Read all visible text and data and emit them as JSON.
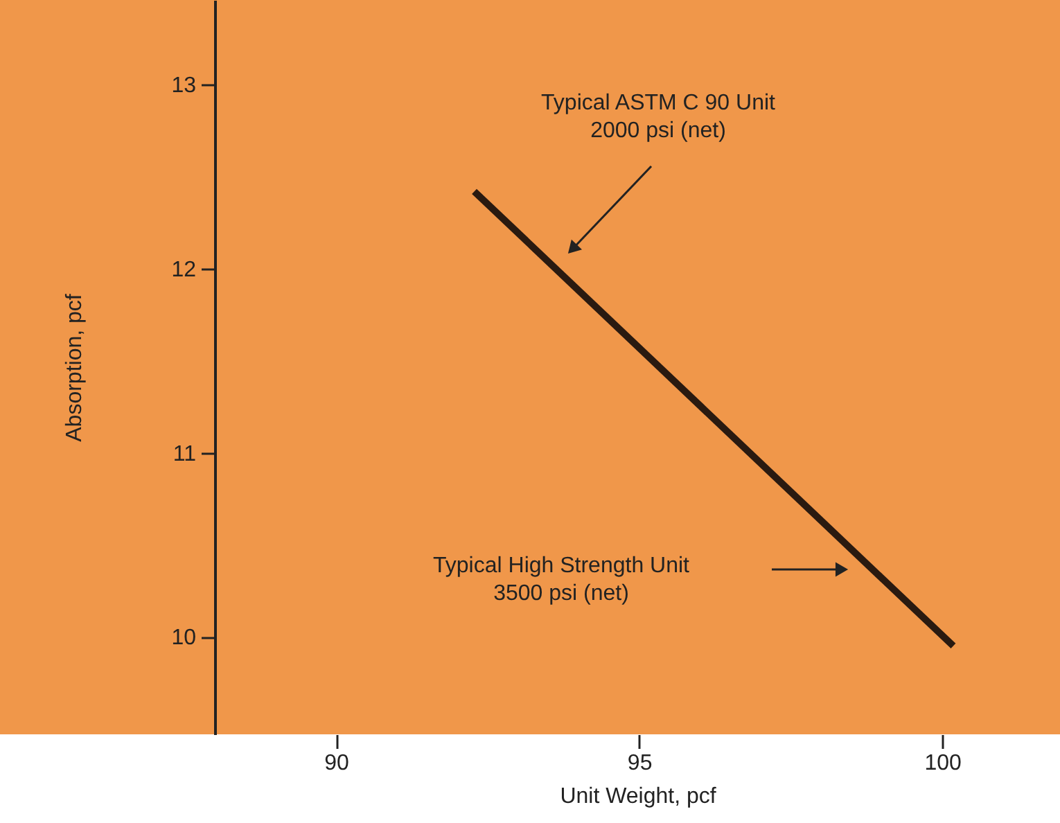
{
  "chart_data": {
    "type": "line",
    "xlabel": "Unit Weight, pcf",
    "ylabel": "Absorption, pcf",
    "x": [
      92.28,
      100.18
    ],
    "series": [
      {
        "color": "#2a1a10",
        "values": [
          12.42,
          9.95
        ]
      }
    ],
    "xlim": [
      88,
      101.94
    ],
    "ylim": [
      9.47,
      13.46
    ],
    "xticks": [
      90,
      95,
      100
    ],
    "yticks": [
      10,
      11,
      12,
      13
    ],
    "grid": false,
    "marker": "none",
    "line_style": "solid",
    "annotations": [
      "Typical ASTM C 90 Unit\n2000 psi (net)",
      "Typical High Strength Unit\n3500 psi (net)"
    ]
  }
}
